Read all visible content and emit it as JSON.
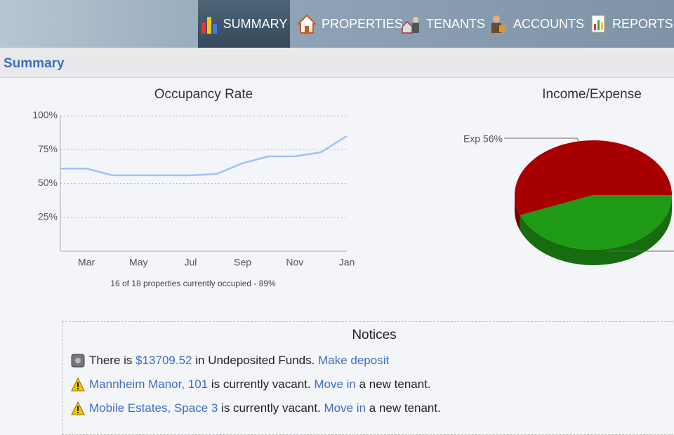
{
  "nav": {
    "items": [
      "SUMMARY",
      "PROPERTIES",
      "TENANTS",
      "ACCOUNTS",
      "REPORTS"
    ]
  },
  "page_title": "Summary",
  "chart_data": [
    {
      "type": "line",
      "title": "Occupancy Rate",
      "categories": [
        null,
        "Mar",
        null,
        "May",
        null,
        "Jul",
        null,
        "Sep",
        null,
        "Nov",
        null,
        "Jan"
      ],
      "values": [
        61,
        61,
        56,
        56,
        56,
        56,
        57,
        65,
        70,
        70,
        73,
        85
      ],
      "color": "#9fc0ff",
      "ylim": [
        0,
        100
      ],
      "yticks": [
        {
          "value": 25,
          "label": "25%"
        },
        {
          "value": 50,
          "label": "50%"
        },
        {
          "value": 75,
          "label": "75%"
        },
        {
          "value": 100,
          "label": "100%"
        }
      ],
      "grid": true,
      "note": "16 of 18 properties currently occupied - 89%"
    },
    {
      "type": "pie",
      "title": "Income/Expense",
      "values": [
        56,
        44
      ],
      "value_labels": [
        "Exp 56%",
        null
      ],
      "colors": [
        "#a80000",
        "#1f9a14"
      ]
    }
  ],
  "notices": {
    "title": "Notices",
    "items": [
      [
        {
          "text": "There is "
        },
        {
          "text": "$13709.52",
          "link": true
        },
        {
          "text": " in Undeposited Funds. "
        },
        {
          "text": "Make deposit",
          "link": true
        }
      ],
      [
        {
          "text": "Mannheim Manor, 101",
          "link": true
        },
        {
          "text": " is currently vacant. "
        },
        {
          "text": "Move in",
          "link": true
        },
        {
          "text": " a new tenant."
        }
      ],
      [
        {
          "text": "Mobile Estates, Space 3",
          "link": true
        },
        {
          "text": " is currently vacant. "
        },
        {
          "text": "Move in",
          "link": true
        },
        {
          "text": " a new tenant."
        }
      ]
    ]
  }
}
